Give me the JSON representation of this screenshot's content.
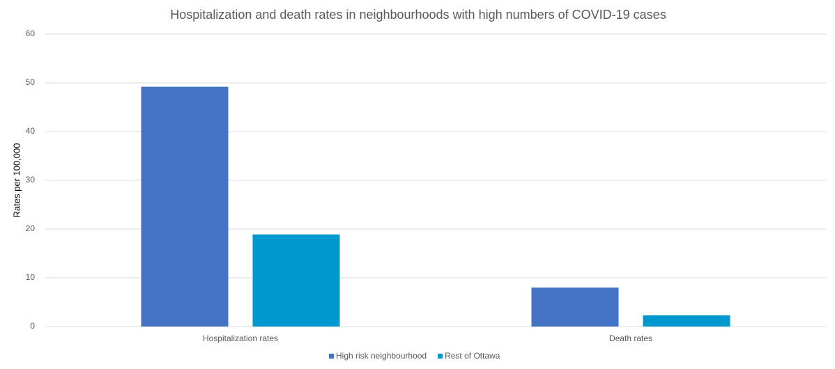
{
  "chart_data": {
    "type": "bar",
    "title": "Hospitalization and death rates in neighbourhoods with high numbers of COVID-19 cases",
    "y_label": "Rates per 100,000",
    "categories": [
      "Hospitalization rates",
      "Death rates"
    ],
    "series": [
      {
        "name": "High risk neighbourhood",
        "color": "#4472c4",
        "values": [
          49.2,
          8.0
        ]
      },
      {
        "name": "Rest of Ottawa",
        "color": "#0099cf",
        "values": [
          18.9,
          2.3
        ]
      }
    ],
    "ylim": [
      0,
      60
    ],
    "yticks": [
      0,
      10,
      20,
      30,
      40,
      50,
      60
    ],
    "grid": true,
    "legend": "bottom"
  }
}
